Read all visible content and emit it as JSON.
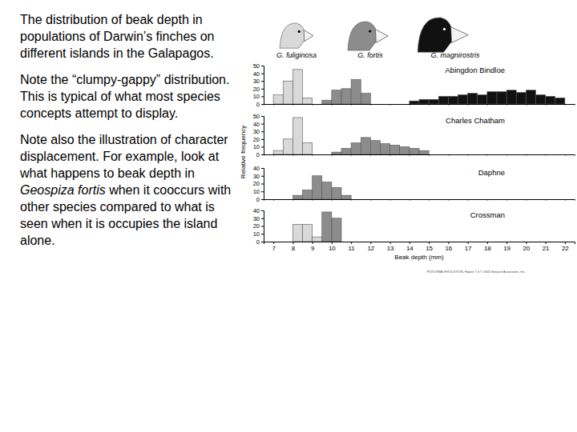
{
  "text": {
    "paragraphs": [
      [
        {
          "text": "The distribution of beak depth in populations of Darwin’s finches on different islands in the Galapagos.",
          "style": "normal"
        }
      ],
      [
        {
          "text": "Note the “clumpy-gappy” distribution.  This is typical of what most species concepts attempt to display.",
          "style": "normal"
        }
      ],
      [
        {
          "text": "Note also the illustration of character displacement.  For example, look at what happens to beak depth in ",
          "style": "normal"
        },
        {
          "text": "Geospiza fortis",
          "style": "italic"
        },
        {
          "text": " when it cooccurs with other species compared to what is seen when it is occupies the island alone.",
          "style": "normal"
        }
      ]
    ]
  },
  "figure": {
    "ylabel": "Relative frequency",
    "credit": "FUTUYMA: EVOLUTION, Figure 7.3 © 2005 Sinauer Associates, Inc."
  },
  "chart_data": [
    {
      "type": "histogram",
      "title": "Abingdon Bindloe",
      "xlim": [
        6.5,
        22.5
      ],
      "xticks": [
        7,
        8,
        9,
        10,
        11,
        12,
        13,
        14,
        15,
        16,
        17,
        18,
        19,
        20,
        21,
        22
      ],
      "ylim": [
        0,
        50
      ],
      "yticks": [
        0,
        10,
        20,
        30,
        40,
        50
      ],
      "tick_labels": "y",
      "series": [
        {
          "name": "G. fuliginosa",
          "color": "#d9d9d9",
          "bins": [
            7,
            7.5,
            8,
            8.5,
            9
          ],
          "values": [
            12,
            30,
            45,
            8
          ]
        },
        {
          "name": "G. fortis",
          "color": "#8c8c8c",
          "bins": [
            9.5,
            10,
            10.5,
            11,
            11.5,
            12
          ],
          "values": [
            5,
            18,
            20,
            32,
            14
          ]
        },
        {
          "name": "G. magnirostris",
          "color": "#111111",
          "bins": [
            14,
            14.5,
            15,
            15.5,
            16,
            16.5,
            17,
            17.5,
            18,
            18.5,
            19,
            19.5,
            20,
            20.5,
            21,
            21.5,
            22
          ],
          "values": [
            4,
            6,
            6,
            10,
            10,
            12,
            14,
            12,
            16,
            16,
            18,
            15,
            18,
            12,
            10,
            8
          ]
        }
      ]
    },
    {
      "type": "histogram",
      "title": "Charles Chatham",
      "xlim": [
        6.5,
        22.5
      ],
      "xticks": [
        7,
        8,
        9,
        10,
        11,
        12,
        13,
        14,
        15,
        16,
        17,
        18,
        19,
        20,
        21,
        22
      ],
      "ylim": [
        0,
        50
      ],
      "yticks": [
        0,
        10,
        20,
        30,
        40,
        50
      ],
      "tick_labels": "y",
      "series": [
        {
          "color": "#d9d9d9",
          "bins": [
            7,
            7.5,
            8,
            8.5,
            9
          ],
          "values": [
            5,
            20,
            48,
            15
          ]
        },
        {
          "color": "#8c8c8c",
          "bins": [
            10,
            10.5,
            11,
            11.5,
            12,
            12.5,
            13,
            13.5,
            14,
            14.5,
            15
          ],
          "values": [
            3,
            8,
            15,
            22,
            18,
            14,
            12,
            10,
            8,
            5
          ]
        }
      ]
    },
    {
      "type": "histogram",
      "title": "Daphne",
      "xlim": [
        6.5,
        22.5
      ],
      "xticks": [
        7,
        8,
        9,
        10,
        11,
        12,
        13,
        14,
        15,
        16,
        17,
        18,
        19,
        20,
        21,
        22
      ],
      "ylim": [
        0,
        40
      ],
      "yticks": [
        0,
        10,
        20,
        30,
        40
      ],
      "tick_labels": "y",
      "series": [
        {
          "color": "#8c8c8c",
          "bins": [
            8,
            8.5,
            9,
            9.5,
            10,
            10.5,
            11
          ],
          "values": [
            5,
            12,
            30,
            22,
            15,
            5
          ]
        }
      ]
    },
    {
      "type": "histogram",
      "title": "Crossman",
      "xlim": [
        6.5,
        22.5
      ],
      "xticks": [
        7,
        8,
        9,
        10,
        11,
        12,
        13,
        14,
        15,
        16,
        17,
        18,
        19,
        20,
        21,
        22
      ],
      "ylim": [
        0,
        40
      ],
      "yticks": [
        0,
        10,
        20,
        30,
        40
      ],
      "xlabel": "Beak depth (mm)",
      "series": [
        {
          "color": "#d9d9d9",
          "bins": [
            8,
            8.5,
            9,
            9.5
          ],
          "values": [
            22,
            22,
            6
          ]
        },
        {
          "color": "#8c8c8c",
          "bins": [
            9.5,
            10,
            10.5
          ],
          "values": [
            38,
            30
          ]
        }
      ]
    }
  ]
}
